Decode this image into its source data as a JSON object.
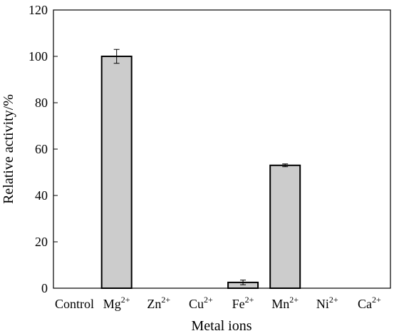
{
  "chart_data": {
    "type": "bar",
    "categories": [
      {
        "base": "Control",
        "sup": ""
      },
      {
        "base": "Mg",
        "sup": "2+"
      },
      {
        "base": "Zn",
        "sup": "2+"
      },
      {
        "base": "Cu",
        "sup": "2+"
      },
      {
        "base": "Fe",
        "sup": "2+"
      },
      {
        "base": "Mn",
        "sup": "2+"
      },
      {
        "base": "Ni",
        "sup": "2+"
      },
      {
        "base": "Ca",
        "sup": "2+"
      }
    ],
    "values": [
      0,
      100,
      0,
      0,
      2.5,
      53,
      0,
      0
    ],
    "errors": [
      0,
      3,
      0,
      0,
      1,
      0.6,
      0,
      0
    ],
    "xlabel": "Metal ions",
    "ylabel": "Relative activity/%",
    "ylim": [
      0,
      120
    ],
    "yticks": [
      0,
      20,
      40,
      60,
      80,
      100,
      120
    ],
    "bar_color": "#cccccc",
    "edge_color": "#000000"
  }
}
